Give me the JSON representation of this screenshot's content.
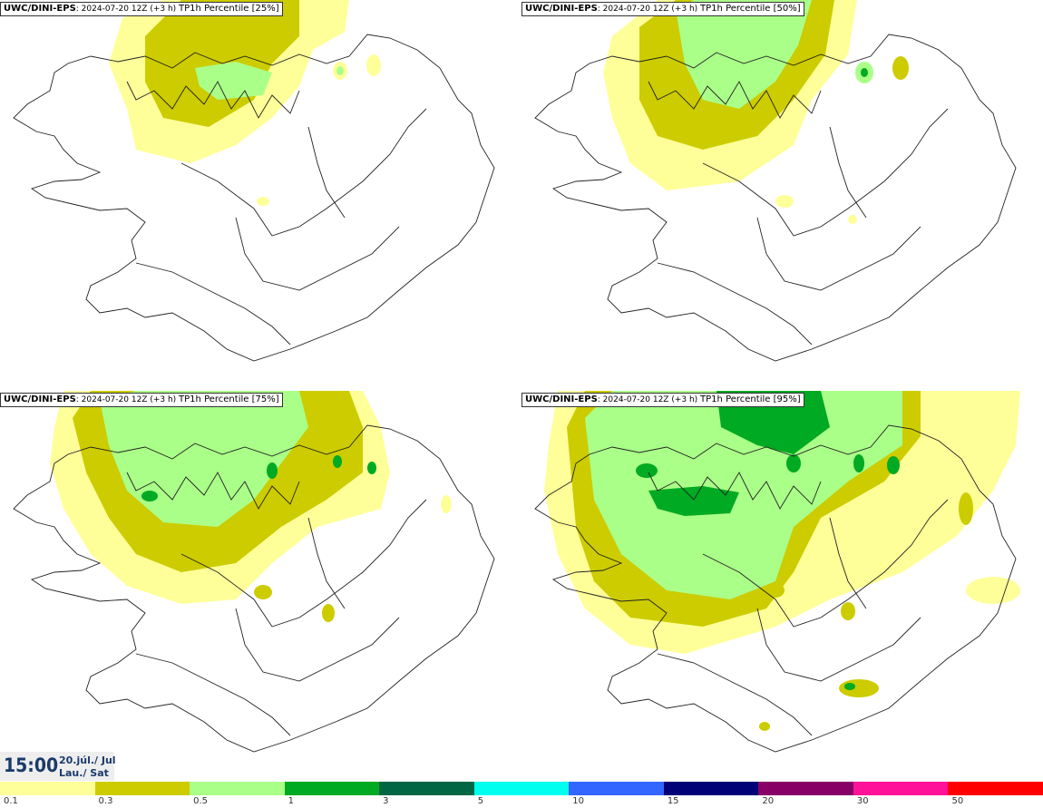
{
  "panels": [
    {
      "model": "UWC/DINI-EPS",
      "run": "2024-07-20 12Z (+3 h)",
      "field": "TP1h Percentile [25%]"
    },
    {
      "model": "UWC/DINI-EPS",
      "run": "2024-07-20 12Z (+3 h)",
      "field": "TP1h Percentile [50%]"
    },
    {
      "model": "UWC/DINI-EPS",
      "run": "2024-07-20 12Z (+3 h)",
      "field": "TP1h Percentile [75%]"
    },
    {
      "model": "UWC/DINI-EPS",
      "run": "2024-07-20 12Z (+3 h)",
      "field": "TP1h Percentile [95%]"
    }
  ],
  "valid_time": {
    "time": "15:00",
    "date": "20.júl./ Jul",
    "day": "Lau./ Sat"
  },
  "legend": {
    "colors": [
      "#ffff99",
      "#cccc00",
      "#aaff88",
      "#00aa22",
      "#006644",
      "#00ffee",
      "#3366ff",
      "#000077",
      "#880066",
      "#ff1199",
      "#ff0000"
    ],
    "ticks": [
      "0.1",
      "0.3",
      "0.5",
      "1",
      "3",
      "5",
      "10",
      "15",
      "20",
      "30",
      "50"
    ]
  }
}
